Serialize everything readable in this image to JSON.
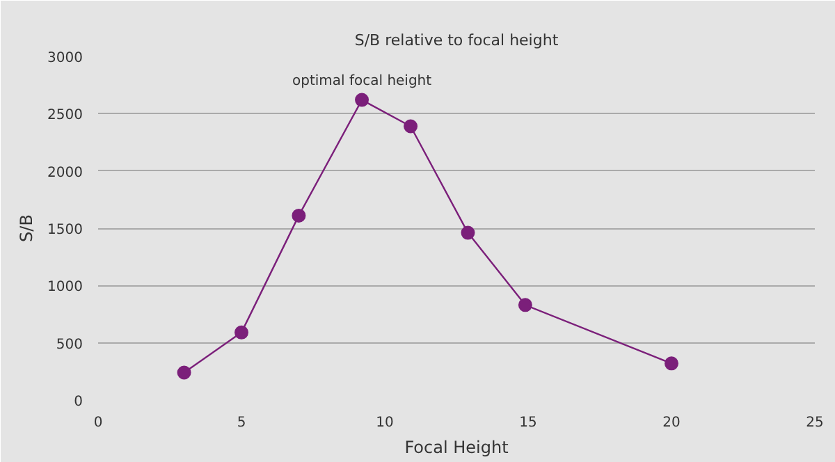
{
  "chart_data": {
    "type": "line",
    "title": "S/B relative to focal height",
    "xlabel": "Focal Height",
    "ylabel": "S/B",
    "x": [
      3,
      5,
      7,
      9.2,
      10.9,
      12.9,
      14.9,
      20
    ],
    "series": [
      {
        "color": "#7b1f7a",
        "values": [
          240,
          590,
          1610,
          2620,
          2390,
          1460,
          830,
          320
        ]
      }
    ],
    "xlim": [
      0,
      25
    ],
    "xticks": [
      0,
      5,
      10,
      15,
      20,
      25
    ],
    "ylim": [
      0,
      3000
    ],
    "yticks": [
      0,
      500,
      1000,
      1500,
      2000,
      2500,
      3000
    ],
    "grid": "y",
    "marker": "circle",
    "line_style": "solid",
    "annotations": [
      {
        "text": "optimal focal height",
        "x": 9.2,
        "y": 2620
      }
    ]
  }
}
